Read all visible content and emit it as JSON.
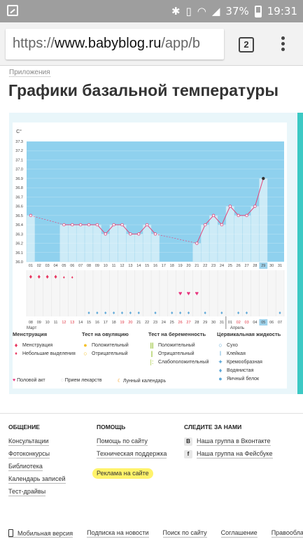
{
  "statusbar": {
    "battery": "37%",
    "time": "19:31"
  },
  "browser": {
    "url_scheme": "https://",
    "url_host": "www.babyblog.ru",
    "url_path": "/app/b",
    "tab_count": "2"
  },
  "page": {
    "breadcrumb": "Приложения",
    "title": "Графики базальной температуры"
  },
  "chart_data": {
    "type": "line",
    "ylabel": "C°",
    "ylim": [
      36.0,
      37.3
    ],
    "yticks": [
      "37.3",
      "37.2",
      "37.1",
      "37.0",
      "36.9",
      "36.8",
      "36.7",
      "36.6",
      "36.5",
      "36.4",
      "36.3",
      "36.2",
      "36.1",
      "36.0"
    ],
    "cycle_days": [
      "01",
      "02",
      "03",
      "04",
      "05",
      "06",
      "07",
      "08",
      "09",
      "10",
      "11",
      "12",
      "13",
      "14",
      "15",
      "16",
      "17",
      "18",
      "19",
      "20",
      "21",
      "22",
      "23",
      "24",
      "25",
      "26",
      "27",
      "28",
      "29",
      "30",
      "31"
    ],
    "highlight_day": "29",
    "series": [
      {
        "values": [
          36.5,
          null,
          null,
          null,
          36.4,
          36.4,
          36.4,
          36.4,
          36.4,
          36.3,
          36.4,
          36.4,
          36.3,
          36.3,
          36.4,
          36.3,
          null,
          null,
          null,
          null,
          36.2,
          36.4,
          36.5,
          36.4,
          36.6,
          36.5,
          36.5,
          36.6,
          36.9,
          null,
          null
        ]
      }
    ],
    "calendar_days": [
      "08",
      "09",
      "10",
      "11",
      "12",
      "13",
      "14",
      "15",
      "16",
      "17",
      "18",
      "19",
      "20",
      "21",
      "22",
      "23",
      "24",
      "25",
      "26",
      "27",
      "28",
      "29",
      "30",
      "31",
      "01",
      "02",
      "03",
      "04",
      "05",
      "06",
      "07"
    ],
    "calendar_red_days": [
      "12",
      "13",
      "19",
      "20",
      "26",
      "27",
      "02",
      "03"
    ],
    "calendar_highlight": "05",
    "month_start": "Март",
    "month_next": "Апрель",
    "menstruation_days": [
      1,
      2,
      3,
      4,
      5,
      6
    ],
    "intercourse_days": [
      19,
      20,
      21
    ],
    "mucus_days": [
      8,
      9,
      10,
      11,
      12,
      13,
      14,
      16,
      18,
      19,
      20,
      22,
      24,
      26,
      27,
      31
    ],
    "colors": {
      "plot_bg": "#8fd1ee",
      "bar": "#cdebf7",
      "line": "#e2457a",
      "accent": "#3cc9c4"
    }
  },
  "legend": {
    "menstruation": {
      "title": "Менструация",
      "items": [
        "Менструация",
        "Небольшие выделения"
      ]
    },
    "ovulation": {
      "title": "Тест на овуляцию",
      "items": [
        "Положительный",
        "Отрицательный"
      ]
    },
    "pregnancy": {
      "title": "Тест на беременность",
      "items": [
        "Положительный",
        "Отрицательный",
        "Слабоположительный"
      ]
    },
    "mucus": {
      "title": "Цервикальная жидкость",
      "items": [
        "Сухо",
        "Клейкая",
        "Кремообразная",
        "Водянистая",
        "Яичный белок"
      ]
    },
    "bottom": [
      "Половой акт",
      "Прием лекарств",
      "Лунный календарь"
    ]
  },
  "footer": {
    "col1": {
      "title": "ОБЩЕНИЕ",
      "links": [
        "Консультации",
        "Фотоконкурсы",
        "Библиотека",
        "Календарь записей",
        "Тест-драйвы"
      ]
    },
    "col2": {
      "title": "ПОМОЩЬ",
      "links": [
        "Помощь по сайту",
        "Техническая поддержка"
      ],
      "highlight_link": "Реклама на сайте"
    },
    "col3": {
      "title": "СЛЕДИТЕ ЗА НАМИ",
      "links": [
        "Наша группа в Вконтакте",
        "Наша группа на Фейсбуке"
      ]
    },
    "bottom": [
      "Мобильная версия",
      "Подписка на новости",
      "Поиск по сайту",
      "Соглашение",
      "Правообладателю"
    ]
  }
}
